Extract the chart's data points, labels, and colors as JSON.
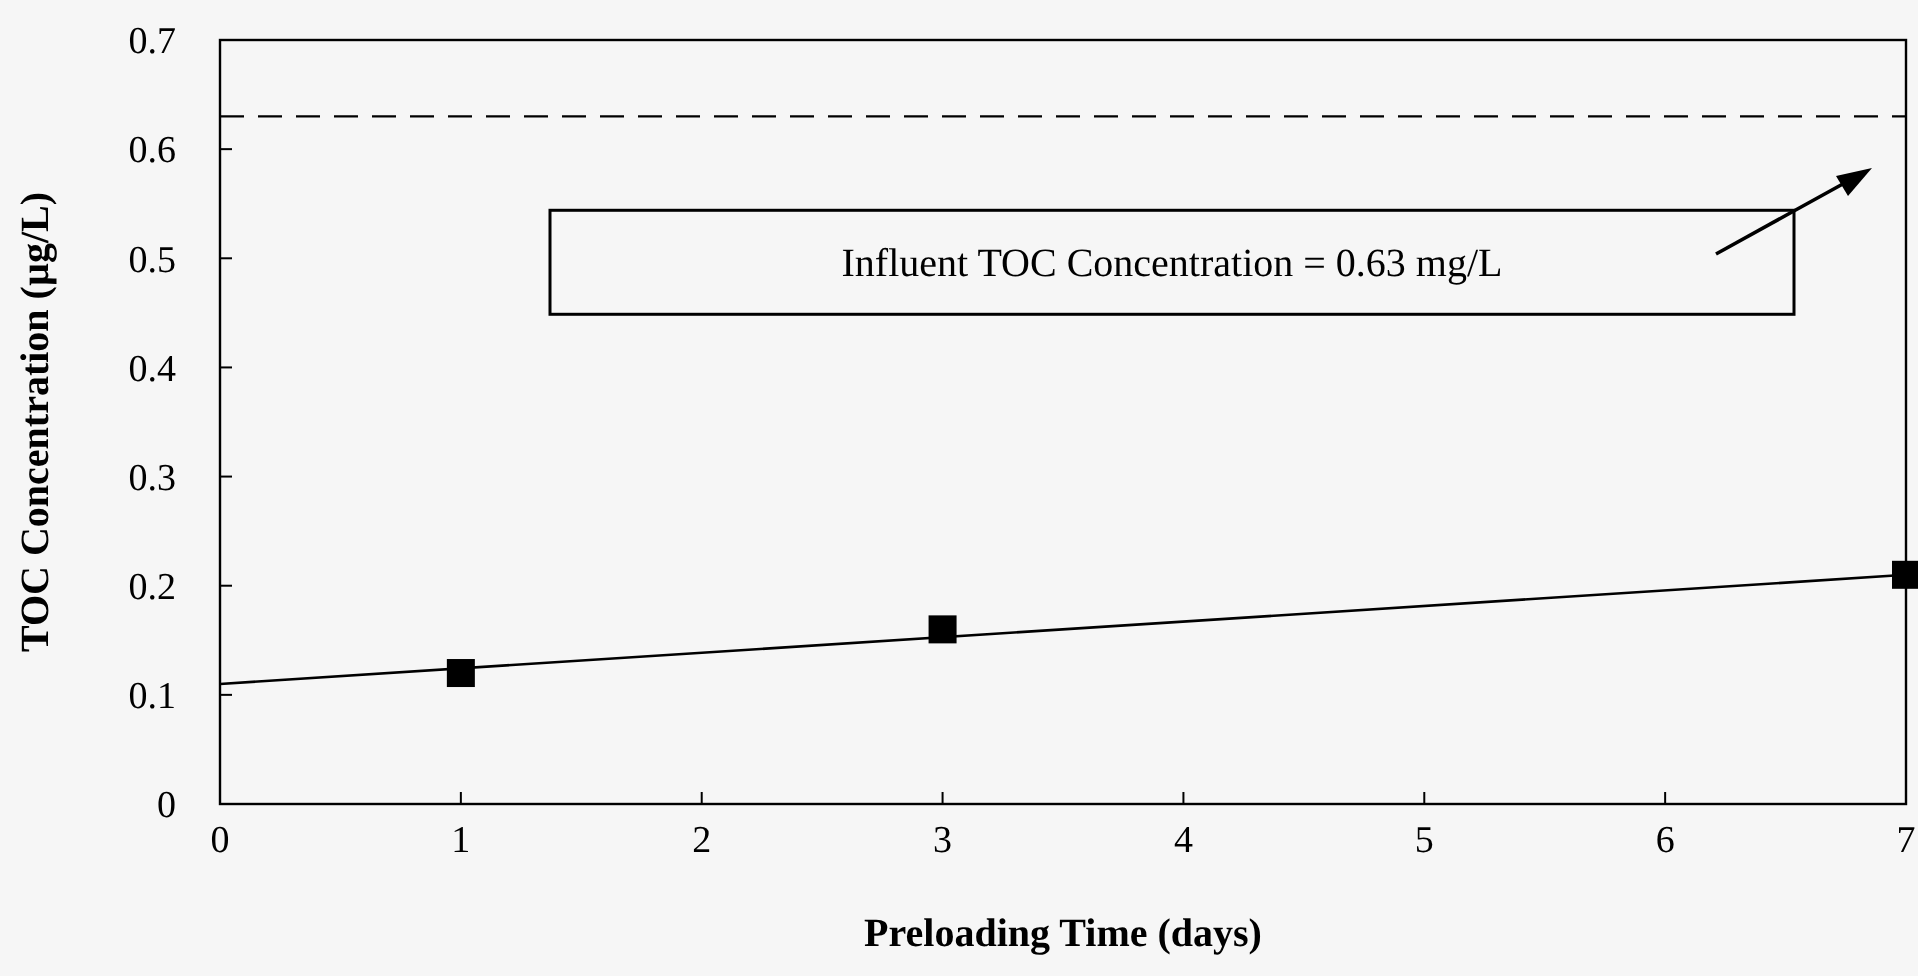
{
  "chart_data": {
    "type": "scatter",
    "xlabel": "Preloading Time (days)",
    "ylabel": "TOC Concentration (µg/L)",
    "xlim": [
      0,
      7
    ],
    "xticks": [
      0,
      1,
      2,
      3,
      4,
      5,
      6,
      7
    ],
    "ylim": [
      0,
      0.7
    ],
    "yticks": [
      0,
      0.1,
      0.2,
      0.3,
      0.4,
      0.5,
      0.6,
      0.7
    ],
    "grid": false,
    "marker": "square",
    "series": [
      {
        "color": "#000000",
        "x": [
          1,
          3,
          7
        ],
        "values": [
          0.12,
          0.16,
          0.21
        ]
      },
      {
        "type": "line",
        "color": "#000000",
        "marker": "none",
        "line_style": "solid",
        "x": [
          0,
          7
        ],
        "values": [
          0.11,
          0.21
        ]
      }
    ],
    "ref_lines": [
      {
        "axis": "y",
        "value": 0.63,
        "color": "#000000",
        "line_style": "dashed"
      }
    ],
    "annotations": [
      "Influent TOC Concentration = 0.63 mg/L"
    ]
  }
}
